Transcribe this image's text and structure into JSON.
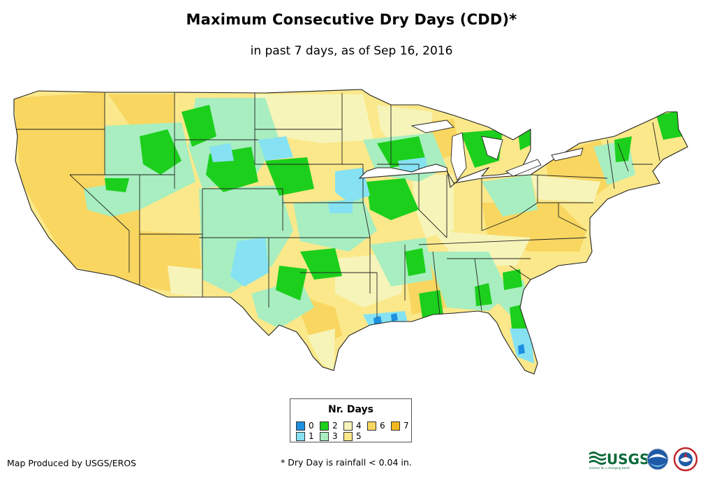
{
  "title": "Maximum Consecutive Dry Days (CDD)*",
  "subtitle": "in past 7 days, as of Sep 16, 2016",
  "legend": {
    "title": "Nr. Days",
    "items": [
      {
        "label": "0",
        "color": "#1e90e0"
      },
      {
        "label": "1",
        "color": "#86e2f2"
      },
      {
        "label": "2",
        "color": "#1ccf1c"
      },
      {
        "label": "3",
        "color": "#a8eec0"
      },
      {
        "label": "4",
        "color": "#f6f4b8"
      },
      {
        "label": "5",
        "color": "#fbe88a"
      },
      {
        "label": "6",
        "color": "#f8d660"
      },
      {
        "label": "7",
        "color": "#f2b81e"
      }
    ]
  },
  "footer": {
    "credit": "Map Produced by USGS/EROS",
    "note": "* Dry Day is rainfall < 0.04 in."
  },
  "logos": {
    "usgs_text": "USGS",
    "usgs_tagline": "science for a changing world"
  }
}
